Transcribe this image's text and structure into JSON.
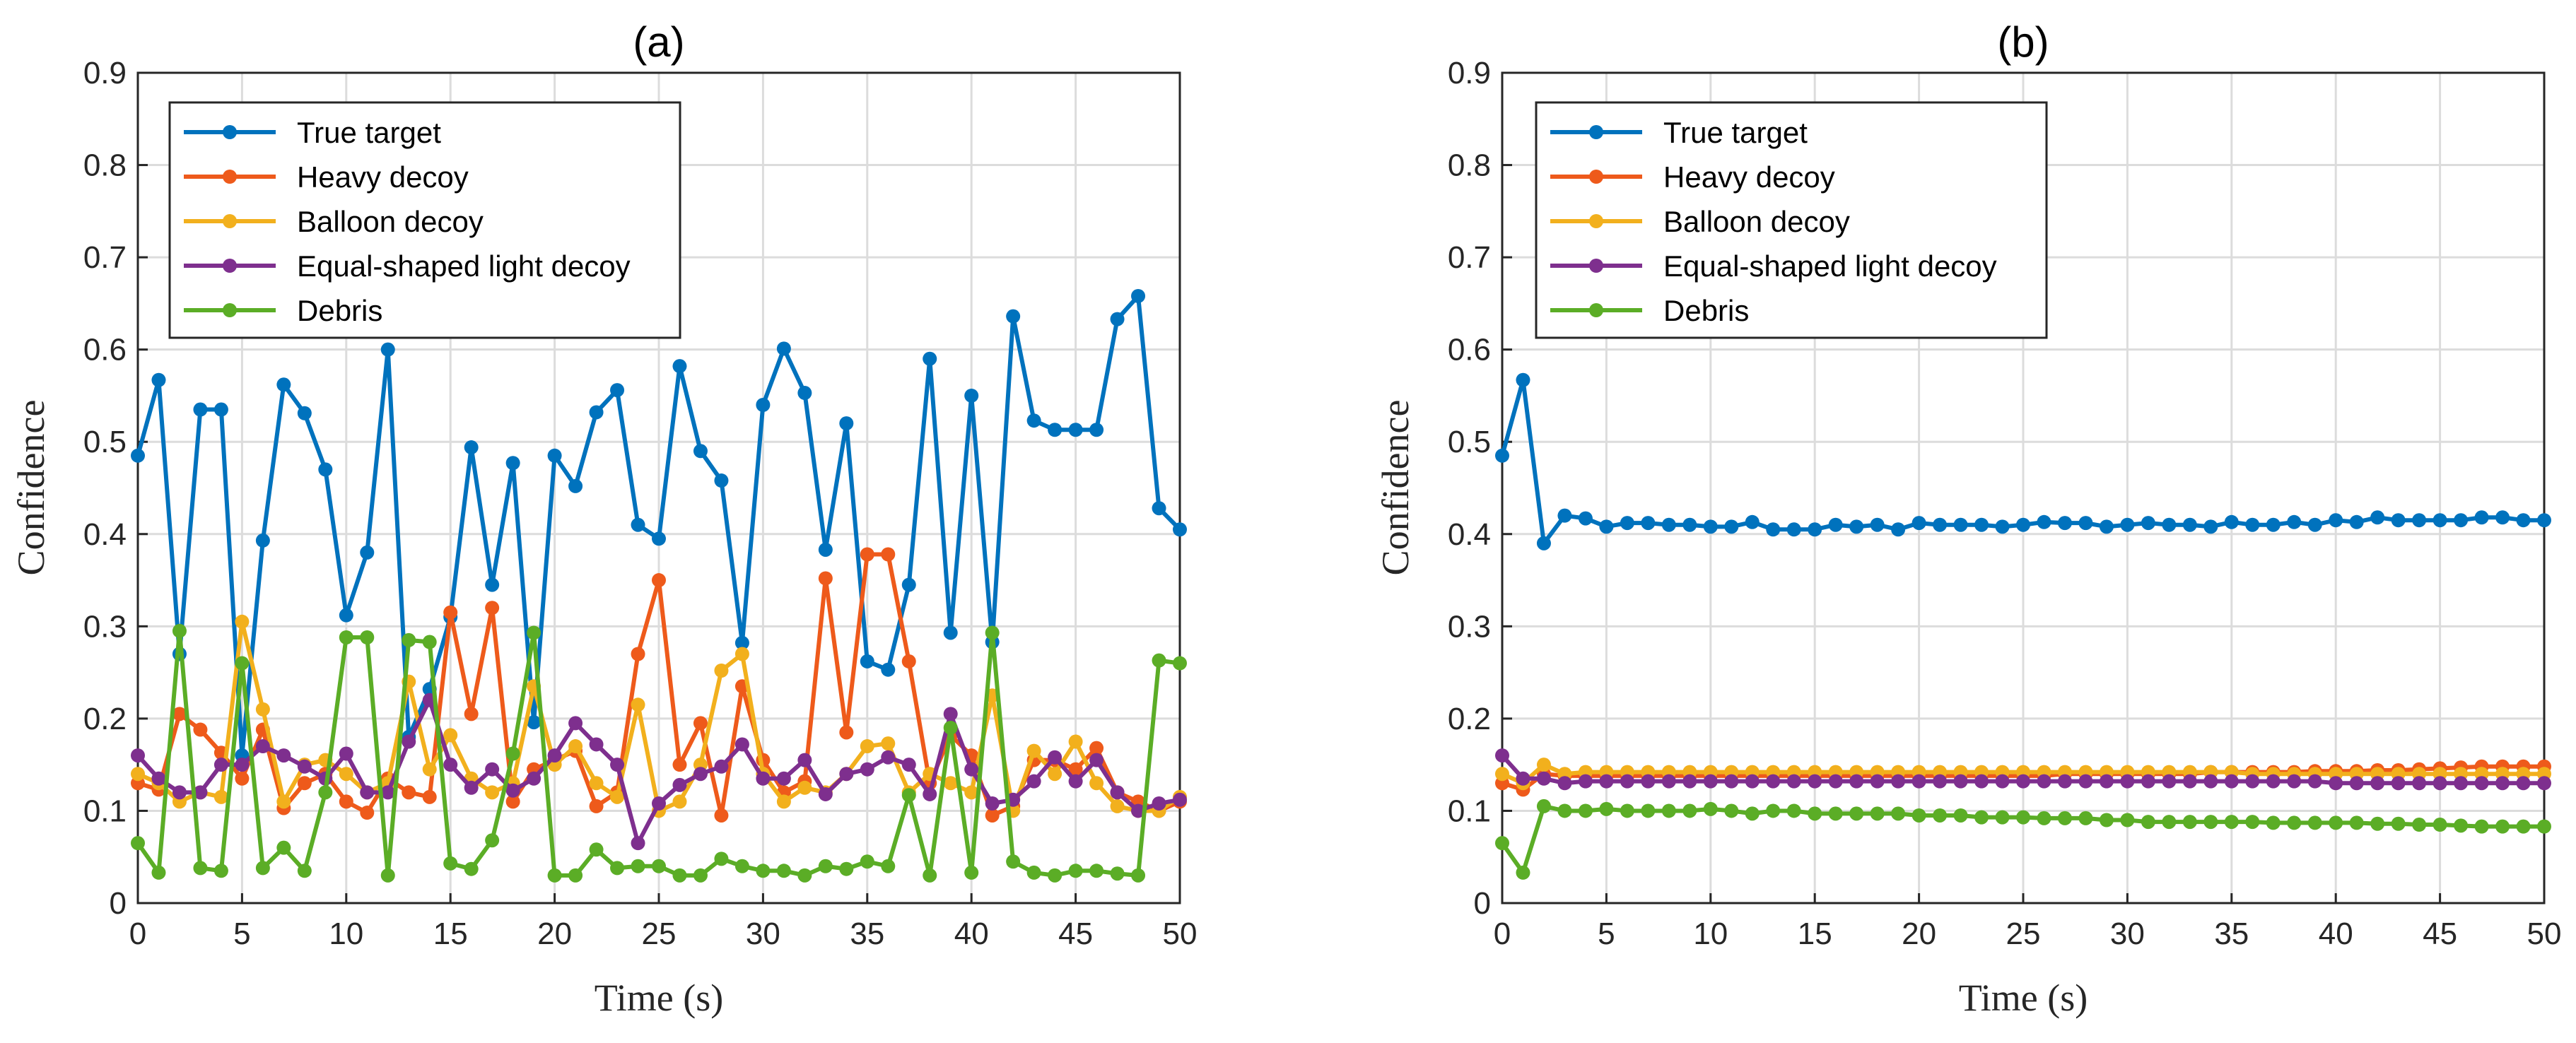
{
  "chart_data": [
    {
      "type": "line",
      "title": "(a)",
      "xlabel": "Time (s)",
      "ylabel": "Confidence",
      "xlim": [
        0,
        50
      ],
      "ylim": [
        0,
        0.9
      ],
      "grid": true,
      "legend_position": "top-left",
      "x_ticks": [
        "0",
        "5",
        "10",
        "15",
        "20",
        "25",
        "30",
        "35",
        "40",
        "45",
        "50"
      ],
      "y_ticks": [
        "0",
        "0.1",
        "0.2",
        "0.3",
        "0.4",
        "0.5",
        "0.6",
        "0.7",
        "0.8",
        "0.9"
      ],
      "x": [
        0,
        1,
        2,
        3,
        4,
        5,
        6,
        7,
        8,
        9,
        10,
        11,
        12,
        13,
        14,
        15,
        16,
        17,
        18,
        19,
        20,
        21,
        22,
        23,
        24,
        25,
        26,
        27,
        28,
        29,
        30,
        31,
        32,
        33,
        34,
        35,
        36,
        37,
        38,
        39,
        40,
        41,
        42,
        43,
        44,
        45,
        46,
        47,
        48,
        49,
        50
      ],
      "series": [
        {
          "name": "True target",
          "color": "#0072BD",
          "values": [
            0.485,
            0.567,
            0.27,
            0.535,
            0.535,
            0.16,
            0.393,
            0.562,
            0.531,
            0.47,
            0.312,
            0.38,
            0.6,
            0.18,
            0.232,
            0.31,
            0.494,
            0.345,
            0.477,
            0.196,
            0.485,
            0.452,
            0.532,
            0.556,
            0.41,
            0.395,
            0.582,
            0.49,
            0.458,
            0.282,
            0.54,
            0.601,
            0.553,
            0.383,
            0.52,
            0.262,
            0.253,
            0.345,
            0.59,
            0.293,
            0.55,
            0.283,
            0.636,
            0.523,
            0.513,
            0.513,
            0.513,
            0.633,
            0.658,
            0.428,
            0.405
          ]
        },
        {
          "name": "Heavy decoy",
          "color": "#EE5A1B",
          "values": [
            0.13,
            0.123,
            0.205,
            0.188,
            0.163,
            0.135,
            0.188,
            0.103,
            0.13,
            0.14,
            0.11,
            0.098,
            0.135,
            0.12,
            0.115,
            0.315,
            0.205,
            0.32,
            0.11,
            0.145,
            0.155,
            0.165,
            0.105,
            0.12,
            0.27,
            0.35,
            0.15,
            0.195,
            0.095,
            0.235,
            0.155,
            0.12,
            0.132,
            0.352,
            0.185,
            0.378,
            0.378,
            0.262,
            0.13,
            0.182,
            0.16,
            0.095,
            0.105,
            0.155,
            0.155,
            0.145,
            0.168,
            0.12,
            0.11,
            0.1,
            0.11
          ]
        },
        {
          "name": "Balloon decoy",
          "color": "#F2B01D",
          "values": [
            0.14,
            0.13,
            0.11,
            0.12,
            0.115,
            0.305,
            0.21,
            0.11,
            0.15,
            0.155,
            0.14,
            0.12,
            0.13,
            0.24,
            0.145,
            0.182,
            0.135,
            0.12,
            0.13,
            0.235,
            0.15,
            0.17,
            0.13,
            0.115,
            0.215,
            0.1,
            0.11,
            0.15,
            0.252,
            0.27,
            0.14,
            0.11,
            0.125,
            0.12,
            0.14,
            0.17,
            0.173,
            0.12,
            0.14,
            0.13,
            0.12,
            0.225,
            0.1,
            0.165,
            0.14,
            0.175,
            0.13,
            0.105,
            0.1,
            0.1,
            0.115
          ]
        },
        {
          "name": "Equal-shaped light decoy",
          "color": "#7E2F8E",
          "values": [
            0.16,
            0.135,
            0.12,
            0.12,
            0.15,
            0.15,
            0.17,
            0.16,
            0.148,
            0.135,
            0.162,
            0.12,
            0.12,
            0.175,
            0.22,
            0.15,
            0.125,
            0.145,
            0.122,
            0.135,
            0.16,
            0.195,
            0.172,
            0.15,
            0.065,
            0.108,
            0.128,
            0.14,
            0.148,
            0.172,
            0.135,
            0.135,
            0.155,
            0.118,
            0.14,
            0.145,
            0.158,
            0.15,
            0.118,
            0.205,
            0.145,
            0.108,
            0.112,
            0.132,
            0.158,
            0.132,
            0.155,
            0.12,
            0.1,
            0.108,
            0.112
          ]
        },
        {
          "name": "Debris",
          "color": "#5BAD26",
          "values": [
            0.065,
            0.033,
            0.295,
            0.038,
            0.035,
            0.26,
            0.038,
            0.06,
            0.035,
            0.12,
            0.288,
            0.288,
            0.03,
            0.285,
            0.283,
            0.043,
            0.037,
            0.068,
            0.162,
            0.293,
            0.03,
            0.03,
            0.058,
            0.038,
            0.04,
            0.04,
            0.03,
            0.03,
            0.048,
            0.04,
            0.035,
            0.035,
            0.03,
            0.04,
            0.037,
            0.045,
            0.04,
            0.117,
            0.03,
            0.19,
            0.033,
            0.293,
            0.045,
            0.033,
            0.03,
            0.035,
            0.035,
            0.032,
            0.03,
            0.263,
            0.26
          ]
        }
      ]
    },
    {
      "type": "line",
      "title": "(b)",
      "xlabel": "Time (s)",
      "ylabel": "Confidence",
      "xlim": [
        0,
        50
      ],
      "ylim": [
        0,
        0.9
      ],
      "grid": true,
      "legend_position": "top-left",
      "x_ticks": [
        "0",
        "5",
        "10",
        "15",
        "20",
        "25",
        "30",
        "35",
        "40",
        "45",
        "50"
      ],
      "y_ticks": [
        "0",
        "0.1",
        "0.2",
        "0.3",
        "0.4",
        "0.5",
        "0.6",
        "0.7",
        "0.8",
        "0.9"
      ],
      "x": [
        0,
        1,
        2,
        3,
        4,
        5,
        6,
        7,
        8,
        9,
        10,
        11,
        12,
        13,
        14,
        15,
        16,
        17,
        18,
        19,
        20,
        21,
        22,
        23,
        24,
        25,
        26,
        27,
        28,
        29,
        30,
        31,
        32,
        33,
        34,
        35,
        36,
        37,
        38,
        39,
        40,
        41,
        42,
        43,
        44,
        45,
        46,
        47,
        48,
        49,
        50
      ],
      "series": [
        {
          "name": "True target",
          "color": "#0072BD",
          "values": [
            0.485,
            0.567,
            0.39,
            0.42,
            0.417,
            0.408,
            0.412,
            0.412,
            0.41,
            0.41,
            0.408,
            0.408,
            0.413,
            0.405,
            0.405,
            0.405,
            0.41,
            0.408,
            0.41,
            0.405,
            0.412,
            0.41,
            0.41,
            0.41,
            0.408,
            0.41,
            0.413,
            0.412,
            0.412,
            0.408,
            0.41,
            0.412,
            0.41,
            0.41,
            0.408,
            0.413,
            0.41,
            0.41,
            0.413,
            0.41,
            0.415,
            0.413,
            0.418,
            0.415,
            0.415,
            0.415,
            0.415,
            0.418,
            0.418,
            0.415,
            0.415
          ]
        },
        {
          "name": "Heavy decoy",
          "color": "#EE5A1B",
          "values": [
            0.13,
            0.123,
            0.14,
            0.138,
            0.138,
            0.138,
            0.138,
            0.138,
            0.138,
            0.138,
            0.138,
            0.138,
            0.138,
            0.138,
            0.138,
            0.138,
            0.138,
            0.138,
            0.138,
            0.138,
            0.138,
            0.138,
            0.138,
            0.138,
            0.138,
            0.138,
            0.138,
            0.14,
            0.14,
            0.14,
            0.14,
            0.14,
            0.14,
            0.14,
            0.142,
            0.142,
            0.142,
            0.142,
            0.142,
            0.143,
            0.143,
            0.143,
            0.144,
            0.144,
            0.145,
            0.146,
            0.147,
            0.148,
            0.148,
            0.148,
            0.148
          ]
        },
        {
          "name": "Balloon decoy",
          "color": "#F2B01D",
          "values": [
            0.14,
            0.13,
            0.15,
            0.14,
            0.142,
            0.142,
            0.142,
            0.142,
            0.142,
            0.142,
            0.142,
            0.142,
            0.142,
            0.142,
            0.142,
            0.142,
            0.142,
            0.142,
            0.142,
            0.142,
            0.142,
            0.142,
            0.142,
            0.142,
            0.142,
            0.142,
            0.142,
            0.142,
            0.142,
            0.142,
            0.142,
            0.142,
            0.142,
            0.142,
            0.142,
            0.142,
            0.14,
            0.14,
            0.14,
            0.14,
            0.14,
            0.14,
            0.14,
            0.14,
            0.14,
            0.14,
            0.14,
            0.14,
            0.14,
            0.14,
            0.14
          ]
        },
        {
          "name": "Equal-shaped light decoy",
          "color": "#7E2F8E",
          "values": [
            0.16,
            0.135,
            0.135,
            0.13,
            0.132,
            0.132,
            0.132,
            0.132,
            0.132,
            0.132,
            0.132,
            0.132,
            0.132,
            0.132,
            0.132,
            0.132,
            0.132,
            0.132,
            0.132,
            0.132,
            0.132,
            0.132,
            0.132,
            0.132,
            0.132,
            0.132,
            0.132,
            0.132,
            0.132,
            0.132,
            0.132,
            0.132,
            0.132,
            0.132,
            0.132,
            0.132,
            0.132,
            0.132,
            0.132,
            0.132,
            0.13,
            0.13,
            0.13,
            0.13,
            0.13,
            0.13,
            0.13,
            0.13,
            0.13,
            0.13,
            0.13
          ]
        },
        {
          "name": "Debris",
          "color": "#5BAD26",
          "values": [
            0.065,
            0.033,
            0.105,
            0.1,
            0.1,
            0.102,
            0.1,
            0.1,
            0.1,
            0.1,
            0.102,
            0.1,
            0.097,
            0.1,
            0.1,
            0.097,
            0.097,
            0.097,
            0.097,
            0.097,
            0.095,
            0.095,
            0.095,
            0.093,
            0.093,
            0.093,
            0.092,
            0.092,
            0.092,
            0.09,
            0.09,
            0.088,
            0.088,
            0.088,
            0.088,
            0.088,
            0.088,
            0.087,
            0.087,
            0.087,
            0.087,
            0.087,
            0.086,
            0.086,
            0.085,
            0.085,
            0.084,
            0.083,
            0.083,
            0.083,
            0.083
          ]
        }
      ]
    }
  ]
}
